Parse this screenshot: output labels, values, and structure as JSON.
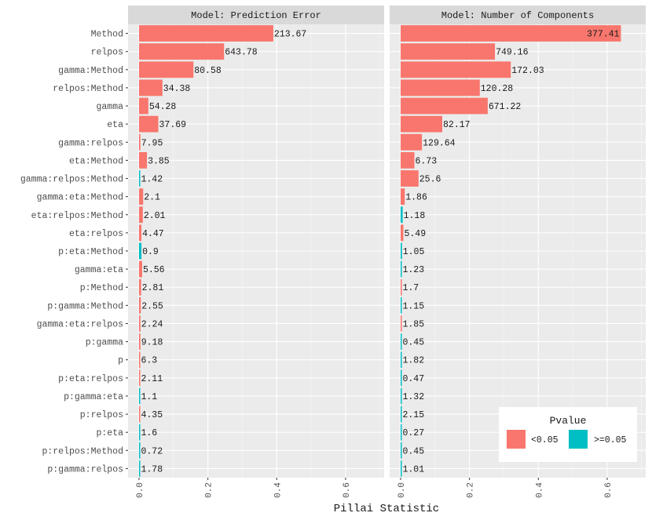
{
  "chart_data": {
    "type": "bar",
    "orientation": "horizontal",
    "facet_by": "Model",
    "xlabel": "Pillai Statistic",
    "xlim": [
      0,
      0.68
    ],
    "xticks": [
      0.0,
      0.2,
      0.4,
      0.6
    ],
    "xtick_labels": [
      "0.0",
      "0.2",
      "0.4",
      "0.6"
    ],
    "grid": true,
    "categories": [
      "Method",
      "relpos",
      "gamma:Method",
      "relpos:Method",
      "gamma",
      "eta",
      "gamma:relpos",
      "eta:Method",
      "gamma:relpos:Method",
      "gamma:eta:Method",
      "eta:relpos:Method",
      "eta:relpos",
      "p:eta:Method",
      "gamma:eta",
      "p:Method",
      "p:gamma:Method",
      "gamma:eta:relpos",
      "p:gamma",
      "p",
      "p:eta:relpos",
      "p:gamma:eta",
      "p:relpos",
      "p:eta",
      "p:relpos:Method",
      "p:gamma:relpos"
    ],
    "legend": {
      "title": "Pvalue",
      "position": "bottom-right",
      "items": [
        {
          "label": "<0.05",
          "color": "#F8766D"
        },
        {
          "label": ">=0.05",
          "color": "#00BFC4"
        }
      ]
    },
    "panels": [
      {
        "strip": "Model: Prediction Error",
        "values": [
          0.39,
          0.247,
          0.158,
          0.068,
          0.027,
          0.056,
          0.004,
          0.023,
          0.003,
          0.012,
          0.011,
          0.007,
          0.007,
          0.009,
          0.006,
          0.005,
          0.004,
          0.004,
          0.003,
          0.003,
          0.002,
          0.003,
          0.002,
          0.001,
          0.001
        ],
        "labels": [
          "213.67",
          "643.78",
          "80.58",
          "34.38",
          "54.28",
          "37.69",
          "7.95",
          "3.85",
          "1.42",
          "2.1",
          "2.01",
          "4.47",
          "0.9",
          "5.56",
          "2.81",
          "2.55",
          "2.24",
          "9.18",
          "6.3",
          "2.11",
          "1.1",
          "4.35",
          "1.6",
          "0.72",
          "1.78"
        ],
        "pvalue": [
          "<0.05",
          "<0.05",
          "<0.05",
          "<0.05",
          "<0.05",
          "<0.05",
          "<0.05",
          "<0.05",
          ">=0.05",
          "<0.05",
          "<0.05",
          "<0.05",
          ">=0.05",
          "<0.05",
          "<0.05",
          "<0.05",
          "<0.05",
          "<0.05",
          "<0.05",
          "<0.05",
          ">=0.05",
          "<0.05",
          ">=0.05",
          ">=0.05",
          ">=0.05"
        ]
      },
      {
        "strip": "Model: Number of Components",
        "values": [
          0.64,
          0.274,
          0.32,
          0.23,
          0.253,
          0.121,
          0.062,
          0.04,
          0.052,
          0.012,
          0.006,
          0.008,
          0.004,
          0.001,
          0.003,
          0.002,
          0.003,
          0.001,
          0.001,
          0.001,
          0.002,
          0.001,
          0.001,
          0.001,
          0.001
        ],
        "labels": [
          "377.41",
          "749.16",
          "172.03",
          "120.28",
          "671.22",
          "82.17",
          "129.64",
          "6.73",
          "25.6",
          "1.86",
          "1.18",
          "5.49",
          "1.05",
          "1.23",
          "1.7",
          "1.15",
          "1.85",
          "0.45",
          "1.82",
          "0.47",
          "1.32",
          "2.15",
          "0.27",
          "0.45",
          "1.01"
        ],
        "pvalue": [
          "<0.05",
          "<0.05",
          "<0.05",
          "<0.05",
          "<0.05",
          "<0.05",
          "<0.05",
          "<0.05",
          "<0.05",
          "<0.05",
          ">=0.05",
          "<0.05",
          ">=0.05",
          ">=0.05",
          "<0.05",
          ">=0.05",
          "<0.05",
          ">=0.05",
          ">=0.05",
          ">=0.05",
          ">=0.05",
          ">=0.05",
          ">=0.05",
          ">=0.05",
          ">=0.05"
        ]
      }
    ]
  }
}
